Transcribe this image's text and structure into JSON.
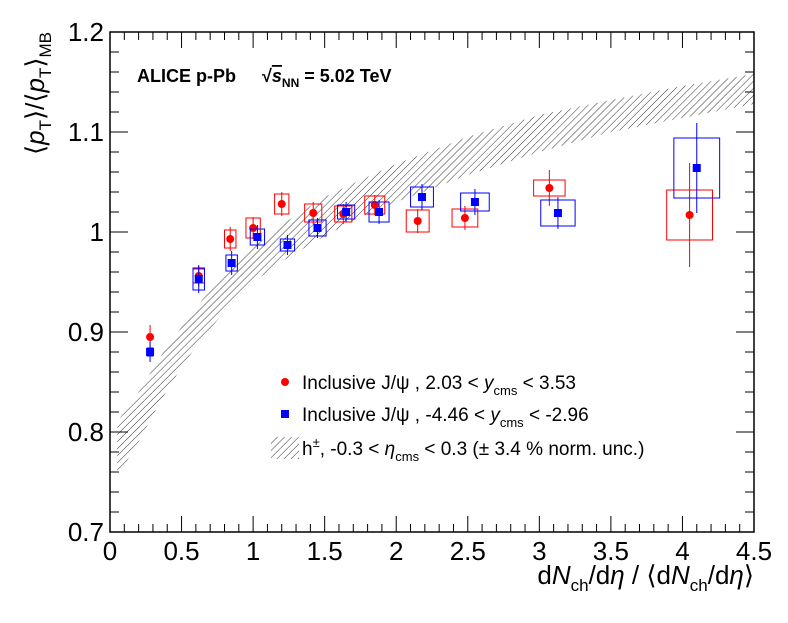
{
  "chart_data": {
    "type": "scatter",
    "experiment_label": "ALICE p-Pb",
    "energy_label": {
      "sqrt": "√",
      "s": "s",
      "sub": "NN",
      "value": " = 5.02 TeV"
    },
    "ylabel_parts": [
      "⟨",
      "p",
      "T",
      "⟩/⟨",
      "p",
      "T",
      "⟩",
      "MB"
    ],
    "xlabel_parts": [
      "d",
      "N",
      "ch",
      "/d",
      "η",
      " / ⟨d",
      "N",
      "ch",
      "/d",
      "η",
      "⟩"
    ],
    "xlim": [
      0,
      4.5
    ],
    "ylim": [
      0.7,
      1.2
    ],
    "x_ticks": [
      "0",
      "0.5",
      "1",
      "1.5",
      "2",
      "2.5",
      "3",
      "3.5",
      "4",
      "4.5"
    ],
    "y_ticks": [
      "0.7",
      "0.8",
      "0.9",
      "1",
      "1.1",
      "1.2"
    ],
    "grid": false,
    "legend_position": "bottom-right",
    "series": [
      {
        "name": "Inclusive J/ψ , 2.03 < y_cms < 3.53",
        "legend": {
          "pre": "Inclusive J/ψ , 2.03 < ",
          "var": "y",
          "sub": "cms",
          "post": " < 3.53"
        },
        "color": "#ff0000",
        "marker": "circle",
        "points": [
          {
            "x": 0.28,
            "y": 0.895,
            "stat": 0.012,
            "box": null
          },
          {
            "x": 0.62,
            "y": 0.956,
            "stat": 0.01,
            "box": [
              0.04,
              0.007
            ]
          },
          {
            "x": 0.84,
            "y": 0.993,
            "stat": 0.012,
            "box": [
              0.04,
              0.009
            ]
          },
          {
            "x": 1.0,
            "y": 1.004,
            "stat": 0.011,
            "box": [
              0.05,
              0.01
            ]
          },
          {
            "x": 1.2,
            "y": 1.028,
            "stat": 0.012,
            "box": [
              0.05,
              0.01
            ]
          },
          {
            "x": 1.42,
            "y": 1.019,
            "stat": 0.011,
            "box": [
              0.06,
              0.009
            ]
          },
          {
            "x": 1.63,
            "y": 1.018,
            "stat": 0.01,
            "box": [
              0.06,
              0.008
            ]
          },
          {
            "x": 1.85,
            "y": 1.027,
            "stat": 0.01,
            "box": [
              0.07,
              0.009
            ]
          },
          {
            "x": 2.15,
            "y": 1.011,
            "stat": 0.012,
            "box": [
              0.08,
              0.011
            ]
          },
          {
            "x": 2.48,
            "y": 1.014,
            "stat": 0.012,
            "box": [
              0.09,
              0.009
            ]
          },
          {
            "x": 3.07,
            "y": 1.044,
            "stat": 0.018,
            "box": [
              0.11,
              0.008
            ]
          },
          {
            "x": 4.05,
            "y": 1.017,
            "stat": 0.052,
            "box": [
              0.16,
              0.025
            ]
          }
        ]
      },
      {
        "name": "Inclusive J/ψ , -4.46 < y_cms < -2.96",
        "legend": {
          "pre": "Inclusive J/ψ , -4.46 < ",
          "var": "y",
          "sub": "cms",
          "post": " < -2.96"
        },
        "color": "#0000ff",
        "marker": "square",
        "points": [
          {
            "x": 0.28,
            "y": 0.88,
            "stat": 0.01,
            "box": [
              0.02,
              0.004
            ]
          },
          {
            "x": 0.62,
            "y": 0.953,
            "stat": 0.014,
            "box": [
              0.04,
              0.011
            ]
          },
          {
            "x": 0.85,
            "y": 0.969,
            "stat": 0.012,
            "box": [
              0.04,
              0.008
            ]
          },
          {
            "x": 1.03,
            "y": 0.995,
            "stat": 0.012,
            "box": [
              0.05,
              0.008
            ]
          },
          {
            "x": 1.24,
            "y": 0.987,
            "stat": 0.01,
            "box": [
              0.05,
              0.006
            ]
          },
          {
            "x": 1.45,
            "y": 1.004,
            "stat": 0.01,
            "box": [
              0.06,
              0.008
            ]
          },
          {
            "x": 1.65,
            "y": 1.02,
            "stat": 0.01,
            "box": [
              0.06,
              0.007
            ]
          },
          {
            "x": 1.88,
            "y": 1.02,
            "stat": 0.012,
            "box": [
              0.07,
              0.01
            ]
          },
          {
            "x": 2.18,
            "y": 1.035,
            "stat": 0.013,
            "box": [
              0.08,
              0.01
            ]
          },
          {
            "x": 2.55,
            "y": 1.03,
            "stat": 0.013,
            "box": [
              0.1,
              0.009
            ]
          },
          {
            "x": 3.13,
            "y": 1.019,
            "stat": 0.016,
            "box": [
              0.12,
              0.013
            ]
          },
          {
            "x": 4.1,
            "y": 1.064,
            "stat": 0.045,
            "box": [
              0.16,
              0.03
            ]
          }
        ]
      },
      {
        "name": "h±, -0.3 < η_cms < 0.3 (± 3.4 % norm. unc.)",
        "legend": {
          "pre": "h",
          "sup": "±",
          "mid": ", -0.3 < ",
          "var": "η",
          "sub": "cms",
          "post": " < 0.3 (± 3.4 % norm. unc.)"
        },
        "type": "band",
        "fill": "hatched",
        "x": [
          0.05,
          0.2,
          0.35,
          0.5,
          0.65,
          0.8,
          1.0,
          1.25,
          1.5,
          1.75,
          2.0,
          2.5,
          3.0,
          3.5,
          4.0,
          4.5
        ],
        "y_low": [
          0.755,
          0.79,
          0.83,
          0.865,
          0.895,
          0.92,
          0.95,
          0.975,
          0.996,
          1.015,
          1.03,
          1.057,
          1.08,
          1.1,
          1.114,
          1.128
        ],
        "y_high": [
          0.81,
          0.84,
          0.875,
          0.905,
          0.933,
          0.957,
          0.985,
          1.012,
          1.035,
          1.052,
          1.068,
          1.095,
          1.117,
          1.132,
          1.146,
          1.158
        ]
      }
    ]
  }
}
